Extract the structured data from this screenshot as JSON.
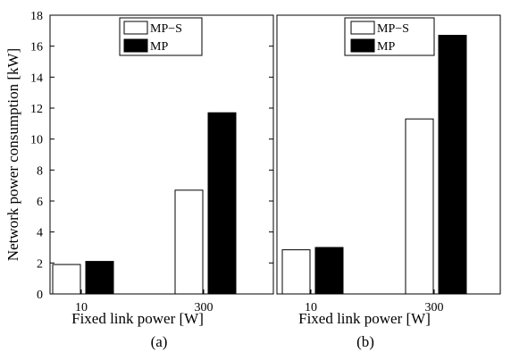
{
  "ylabel": "Network power consumption [kW]",
  "ylim": [
    0,
    18
  ],
  "yticks": [
    "0",
    "2",
    "4",
    "6",
    "8",
    "10",
    "12",
    "14",
    "16",
    "18"
  ],
  "legend": [
    {
      "label": "MP−S",
      "color": "#ffffff"
    },
    {
      "label": "MP",
      "color": "#000000"
    }
  ],
  "chart_data": [
    {
      "type": "bar",
      "panel": "(a)",
      "xlabel": "Fixed link power [W]",
      "categories": [
        "10",
        "300"
      ],
      "series": [
        {
          "name": "MP−S",
          "color": "#ffffff",
          "values": [
            1.9,
            6.7
          ]
        },
        {
          "name": "MP",
          "color": "#000000",
          "values": [
            2.1,
            11.7
          ]
        }
      ],
      "ylabel": "Network power consumption [kW]",
      "ylim": [
        0,
        18
      ],
      "legend_position": "top-center"
    },
    {
      "type": "bar",
      "panel": "(b)",
      "xlabel": "Fixed link power [W]",
      "categories": [
        "10",
        "300"
      ],
      "series": [
        {
          "name": "MP−S",
          "color": "#ffffff",
          "values": [
            2.85,
            11.3
          ]
        },
        {
          "name": "MP",
          "color": "#000000",
          "values": [
            3.0,
            16.7
          ]
        }
      ],
      "ylim": [
        0,
        18
      ],
      "legend_position": "top-center"
    }
  ]
}
